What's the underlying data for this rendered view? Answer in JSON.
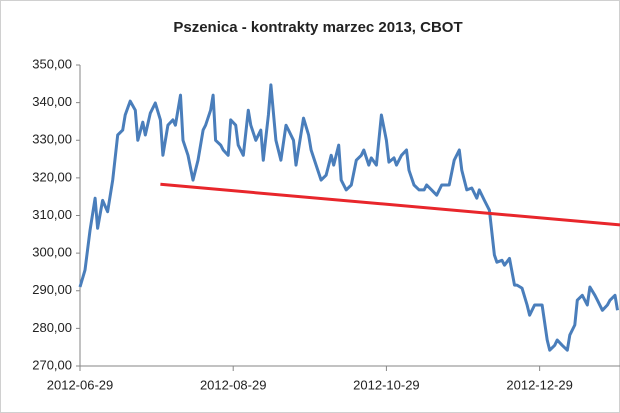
{
  "chart_data": {
    "type": "line",
    "title": "Pszenica - kontrakty marzec 2013, CBOT",
    "xlim": [
      "2012-06-29",
      "2013-01-30"
    ],
    "xticks": [
      "2012-06-29",
      "2012-08-29",
      "2012-10-29",
      "2012-12-29"
    ],
    "ylim": [
      270,
      350
    ],
    "yticks": [
      {
        "value": 270,
        "label": "270,00"
      },
      {
        "value": 280,
        "label": "280,00"
      },
      {
        "value": 290,
        "label": "290,00"
      },
      {
        "value": 300,
        "label": "300,00"
      },
      {
        "value": 310,
        "label": "310,00"
      },
      {
        "value": 320,
        "label": "320,00"
      },
      {
        "value": 330,
        "label": "330,00"
      },
      {
        "value": 340,
        "label": "340,00"
      },
      {
        "value": 350,
        "label": "350,00"
      }
    ],
    "grid": false,
    "series": [
      {
        "color": "#4a7ebb",
        "x": [
          "2012-06-29",
          "2012-07-01",
          "2012-07-03",
          "2012-07-05",
          "2012-07-06",
          "2012-07-08",
          "2012-07-10",
          "2012-07-12",
          "2012-07-14",
          "2012-07-16",
          "2012-07-17",
          "2012-07-19",
          "2012-07-21",
          "2012-07-22",
          "2012-07-24",
          "2012-07-25",
          "2012-07-27",
          "2012-07-29",
          "2012-07-31",
          "2012-08-01",
          "2012-08-03",
          "2012-08-05",
          "2012-08-06",
          "2012-08-08",
          "2012-08-09",
          "2012-08-11",
          "2012-08-13",
          "2012-08-15",
          "2012-08-17",
          "2012-08-18",
          "2012-08-20",
          "2012-08-21",
          "2012-08-22",
          "2012-08-24",
          "2012-08-25",
          "2012-08-27",
          "2012-08-28",
          "2012-08-30",
          "2012-08-31",
          "2012-09-02",
          "2012-09-04",
          "2012-09-05",
          "2012-09-07",
          "2012-09-09",
          "2012-09-10",
          "2012-09-12",
          "2012-09-13",
          "2012-09-15",
          "2012-09-17",
          "2012-09-19",
          "2012-09-20",
          "2012-09-22",
          "2012-09-23",
          "2012-09-26",
          "2012-09-28",
          "2012-09-29",
          "2012-10-01",
          "2012-10-03",
          "2012-10-05",
          "2012-10-07",
          "2012-10-08",
          "2012-10-10",
          "2012-10-11",
          "2012-10-13",
          "2012-10-15",
          "2012-10-17",
          "2012-10-19",
          "2012-10-20",
          "2012-10-22",
          "2012-10-23",
          "2012-10-25",
          "2012-10-27",
          "2012-10-29",
          "2012-10-30",
          "2012-11-01",
          "2012-11-02",
          "2012-11-04",
          "2012-11-06",
          "2012-11-07",
          "2012-11-09",
          "2012-11-11",
          "2012-11-13",
          "2012-11-14",
          "2012-11-16",
          "2012-11-18",
          "2012-11-20",
          "2012-11-22",
          "2012-11-23",
          "2012-11-25",
          "2012-11-27",
          "2012-11-28",
          "2012-11-30",
          "2012-12-02",
          "2012-12-04",
          "2012-12-05",
          "2012-12-07",
          "2012-12-09",
          "2012-12-11",
          "2012-12-12",
          "2012-12-14",
          "2012-12-15",
          "2012-12-17",
          "2012-12-19",
          "2012-12-20",
          "2012-12-22",
          "2012-12-24",
          "2012-12-25",
          "2012-12-27",
          "2012-12-28",
          "2012-12-30",
          "2013-01-01",
          "2013-01-02",
          "2013-01-04",
          "2013-01-05",
          "2013-01-07",
          "2013-01-09",
          "2013-01-10",
          "2013-01-12",
          "2013-01-13",
          "2013-01-15",
          "2013-01-17",
          "2013-01-18",
          "2013-01-20",
          "2013-01-21",
          "2013-01-23",
          "2013-01-25",
          "2013-01-26",
          "2013-01-28",
          "2013-01-29"
        ],
        "values": [
          291,
          295.5,
          306,
          314.6,
          306.6,
          314,
          311,
          319.4,
          331.4,
          332.7,
          336.7,
          340.4,
          338,
          330,
          334.8,
          331.4,
          337.2,
          339.9,
          335.4,
          326,
          334,
          335.4,
          334,
          342,
          330,
          326,
          319.4,
          324.7,
          332.7,
          334,
          338,
          342,
          330,
          328.7,
          327.4,
          326,
          335.4,
          334,
          328.7,
          326,
          338,
          334,
          330,
          332.7,
          324.7,
          336.7,
          344.7,
          330,
          324.7,
          334,
          332.7,
          330,
          323.4,
          335.9,
          331.4,
          327.4,
          323.4,
          319.4,
          320.7,
          326,
          323.4,
          328.7,
          319.4,
          316.8,
          318.1,
          324.7,
          326,
          327.4,
          323.4,
          325.3,
          323.4,
          336.7,
          330,
          324.2,
          325.3,
          323.4,
          326,
          327.4,
          322,
          318.1,
          316.8,
          316.8,
          318.1,
          316.8,
          315.4,
          318.1,
          318.1,
          318.1,
          324.7,
          327.4,
          322,
          316.8,
          317.3,
          314.6,
          316.8,
          314,
          311.4,
          299.5,
          297.6,
          298.1,
          296.8,
          298.6,
          291.5,
          291.5,
          290.7,
          286.2,
          283.5,
          286.2,
          286.2,
          286.2,
          276.9,
          274.2,
          275.5,
          276.9,
          275.5,
          274.2,
          278.2,
          280.9,
          287.5,
          288.8,
          286.2,
          291,
          288.8,
          287.5,
          284.8,
          286.2,
          287.5,
          288.8,
          284.8
        ]
      },
      {
        "color": "#e8262b",
        "x": [
          "2012-07-31",
          "2013-01-30"
        ],
        "values": [
          318.3,
          307.5
        ]
      }
    ]
  }
}
